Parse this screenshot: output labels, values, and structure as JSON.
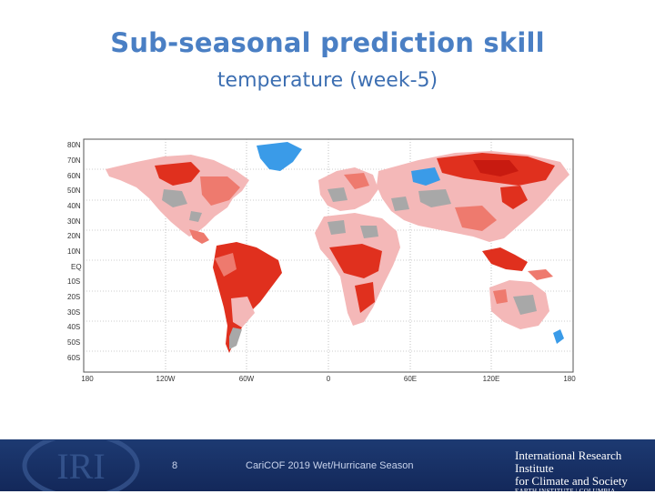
{
  "slide": {
    "title": "Sub-seasonal prediction skill",
    "subtitle": "temperature (week-5)",
    "page_number": "8",
    "footer_text": "CariCOF 2019 Wet/Hurricane Season"
  },
  "map": {
    "lat_labels": [
      "80N",
      "70N",
      "60N",
      "50N",
      "40N",
      "30N",
      "20N",
      "10N",
      "EQ",
      "10S",
      "20S",
      "30S",
      "40S",
      "50S",
      "60S"
    ],
    "lon_labels": [
      "180",
      "120W",
      "60W",
      "0",
      "60E",
      "120E",
      "180"
    ],
    "colors": {
      "land_light": "#f4b8b8",
      "land_mid": "#ee7a6e",
      "land_strong": "#e0301e",
      "land_deep": "#c81a10",
      "neutral": "#a8a8a8",
      "negative": "#3a9be8",
      "ocean": "#ffffff"
    }
  },
  "institution": {
    "logo_text": "IRI",
    "line1": "International Research Institute",
    "line2": "for Climate and Society",
    "line3": "EARTH INSTITUTE | COLUMBIA UNIVERSITY"
  }
}
